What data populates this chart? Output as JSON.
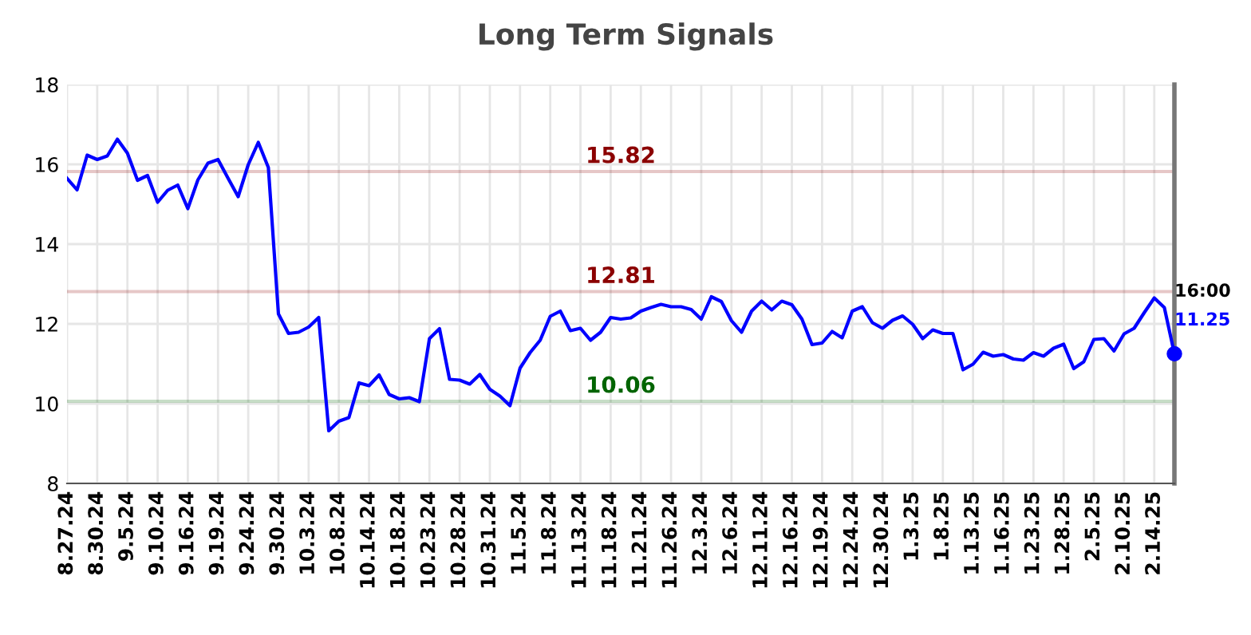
{
  "chart_data": {
    "type": "line",
    "title": "Long Term Signals",
    "categories": [
      "8.27.24",
      null,
      null,
      "8.30.24",
      null,
      null,
      "9.5.24",
      null,
      null,
      "9.10.24",
      null,
      null,
      "9.16.24",
      null,
      null,
      "9.19.24",
      null,
      null,
      "9.24.24",
      null,
      null,
      "9.30.24",
      null,
      null,
      "10.3.24",
      null,
      null,
      "10.8.24",
      null,
      null,
      "10.14.24",
      null,
      null,
      "10.18.24",
      null,
      null,
      "10.23.24",
      null,
      null,
      "10.28.24",
      null,
      null,
      "10.31.24",
      null,
      null,
      "11.5.24",
      null,
      null,
      "11.8.24",
      null,
      null,
      "11.13.24",
      null,
      null,
      "11.18.24",
      null,
      null,
      "11.21.24",
      null,
      null,
      "11.26.24",
      null,
      null,
      "12.3.24",
      null,
      null,
      "12.6.24",
      null,
      null,
      "12.11.24",
      null,
      null,
      "12.16.24",
      null,
      null,
      "12.19.24",
      null,
      null,
      "12.24.24",
      null,
      null,
      "12.30.24",
      null,
      null,
      "1.3.25",
      null,
      null,
      "1.8.25",
      null,
      null,
      "1.13.25",
      null,
      null,
      "1.16.25",
      null,
      null,
      "1.23.25",
      null,
      null,
      "1.28.25",
      null,
      null,
      "2.5.25",
      null,
      null,
      "2.10.25",
      null,
      null,
      "2.14.25",
      null,
      null
    ],
    "series": [
      {
        "color": "#0000ff",
        "values": [
          15.65,
          15.36,
          16.23,
          16.12,
          16.21,
          16.63,
          16.28,
          15.6,
          15.72,
          15.05,
          15.35,
          15.48,
          14.89,
          15.61,
          16.03,
          16.12,
          15.65,
          15.19,
          15.99,
          16.55,
          15.92,
          12.25,
          11.76,
          11.79,
          11.92,
          12.16,
          9.32,
          9.56,
          9.65,
          10.52,
          10.45,
          10.72,
          10.23,
          10.12,
          10.15,
          10.05,
          11.63,
          11.88,
          10.61,
          10.59,
          10.49,
          10.73,
          10.36,
          10.19,
          9.95,
          10.89,
          11.28,
          11.59,
          12.19,
          12.32,
          11.83,
          11.89,
          11.59,
          11.79,
          12.16,
          12.12,
          12.15,
          12.32,
          12.41,
          12.49,
          12.43,
          12.43,
          12.36,
          12.12,
          12.68,
          12.56,
          12.08,
          11.79,
          12.32,
          12.57,
          12.35,
          12.57,
          12.48,
          12.12,
          11.48,
          11.52,
          11.81,
          11.65,
          12.32,
          12.43,
          12.03,
          11.89,
          12.09,
          12.2,
          11.99,
          11.63,
          11.85,
          11.76,
          11.76,
          10.85,
          10.99,
          11.29,
          11.19,
          11.23,
          11.12,
          11.09,
          11.28,
          11.19,
          11.39,
          11.49,
          10.88,
          11.05,
          11.61,
          11.63,
          11.32,
          11.75,
          11.89,
          12.28,
          12.65,
          12.41,
          11.25
        ]
      }
    ],
    "ylim": [
      8,
      18
    ],
    "yticks": [
      8,
      10,
      12,
      14,
      16,
      18
    ],
    "grid": true,
    "line_style": "solid",
    "ref_lines": [
      {
        "axis": "y",
        "value": 15.82,
        "label": "15.82",
        "color": "#8b0000"
      },
      {
        "axis": "y",
        "value": 12.81,
        "label": "12.81",
        "color": "#8b0000"
      },
      {
        "axis": "y",
        "value": 10.06,
        "label": "10.06",
        "color": "#006400"
      }
    ],
    "annotations": [
      "16:00",
      "11.25"
    ]
  }
}
